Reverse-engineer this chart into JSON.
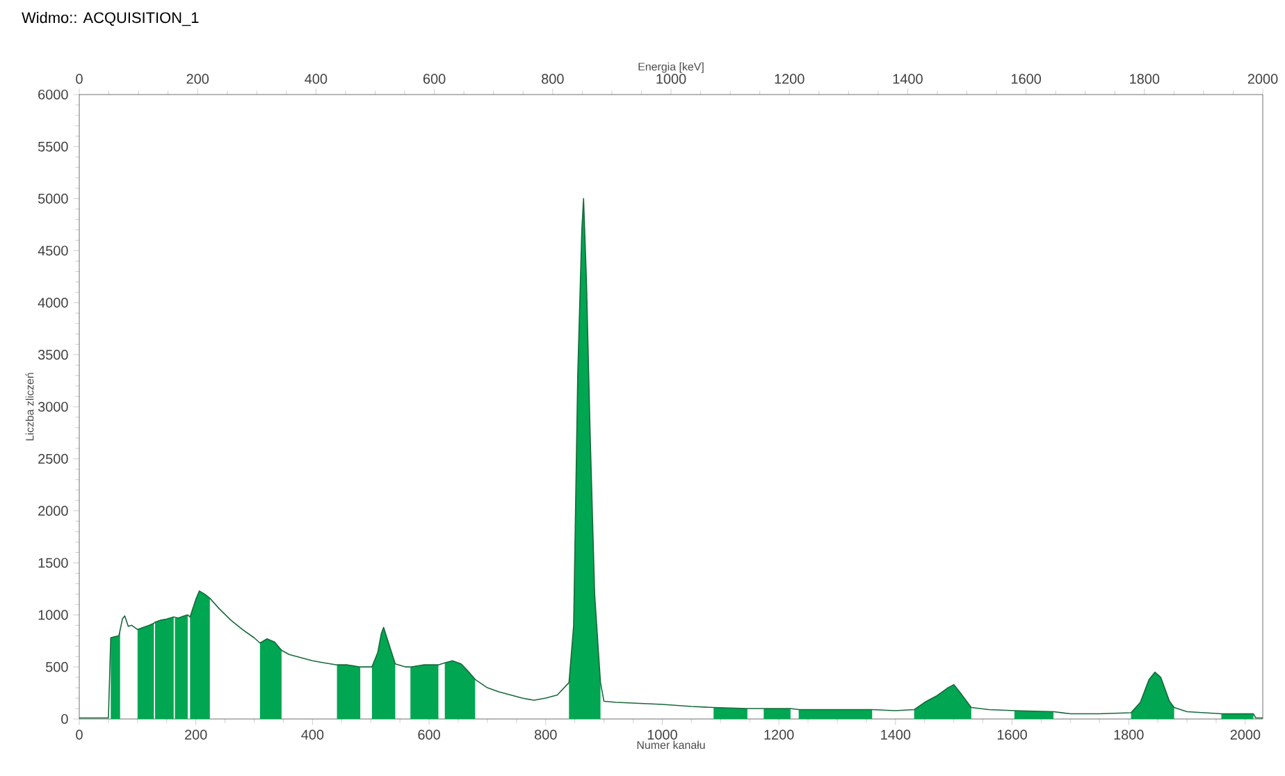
{
  "chart_data": {
    "type": "line",
    "title": "Widmo:: ACQUISITION_1",
    "xlabel": "Numer kanału",
    "ylabel": "Liczba zliczeń",
    "x2label": "Energia [keV]",
    "xlim": [
      0,
      2030
    ],
    "xticks": [
      0,
      200,
      400,
      600,
      800,
      1000,
      1200,
      1400,
      1600,
      1800,
      2000
    ],
    "x2lim": [
      0,
      2000
    ],
    "x2ticks": [
      0,
      200,
      400,
      600,
      800,
      1000,
      1200,
      1400,
      1600,
      1800,
      2000
    ],
    "ylim": [
      0,
      6000
    ],
    "yticks": [
      0,
      500,
      1000,
      1500,
      2000,
      2500,
      3000,
      3500,
      4000,
      4500,
      5000,
      5500,
      6000
    ],
    "grid": false,
    "marker": "none",
    "line_style": "solid",
    "series": [
      {
        "type": "area",
        "color": "#00a651",
        "x": [
          54,
          60,
          68,
          70
        ],
        "values": [
          780,
          790,
          800,
          850
        ]
      },
      {
        "type": "area",
        "color": "#00a651",
        "x": [
          100,
          110,
          120,
          128
        ],
        "values": [
          860,
          880,
          900,
          920
        ]
      },
      {
        "type": "area",
        "color": "#00a651",
        "x": [
          130,
          140,
          150,
          162
        ],
        "values": [
          930,
          950,
          960,
          980
        ]
      },
      {
        "type": "area",
        "color": "#00a651",
        "x": [
          164,
          170,
          180,
          186
        ],
        "values": [
          970,
          970,
          990,
          1000
        ]
      },
      {
        "type": "area",
        "color": "#00a651",
        "x": [
          190,
          200,
          206,
          215,
          224
        ],
        "values": [
          980,
          1150,
          1230,
          1200,
          1160
        ]
      },
      {
        "type": "area",
        "color": "#00a651",
        "x": [
          310,
          322,
          335,
          347
        ],
        "values": [
          730,
          770,
          740,
          660
        ]
      },
      {
        "type": "area",
        "color": "#00a651",
        "x": [
          442,
          460,
          482
        ],
        "values": [
          520,
          520,
          500
        ]
      },
      {
        "type": "area",
        "color": "#00a651",
        "x": [
          502,
          512,
          518,
          522,
          530,
          542
        ],
        "values": [
          500,
          640,
          820,
          880,
          740,
          530
        ]
      },
      {
        "type": "area",
        "color": "#00a651",
        "x": [
          568,
          590,
          616
        ],
        "values": [
          500,
          520,
          520
        ]
      },
      {
        "type": "area",
        "color": "#00a651",
        "x": [
          627,
          640,
          655,
          670,
          679
        ],
        "values": [
          540,
          560,
          530,
          440,
          380
        ]
      },
      {
        "type": "area",
        "color": "#00a651",
        "x": [
          840,
          848,
          855,
          862,
          865,
          870,
          876,
          884,
          894
        ],
        "values": [
          350,
          900,
          3300,
          4700,
          5000,
          4200,
          2800,
          1200,
          350
        ]
      },
      {
        "type": "area",
        "color": "#00a651",
        "x": [
          1088,
          1146
        ],
        "values": [
          110,
          100
        ]
      },
      {
        "type": "area",
        "color": "#00a651",
        "x": [
          1174,
          1220
        ],
        "values": [
          100,
          100
        ]
      },
      {
        "type": "area",
        "color": "#00a651",
        "x": [
          1234,
          1360
        ],
        "values": [
          90,
          90
        ]
      },
      {
        "type": "area",
        "color": "#00a651",
        "x": [
          1432,
          1450,
          1470,
          1490,
          1500,
          1510,
          1530
        ],
        "values": [
          90,
          160,
          220,
          300,
          330,
          260,
          110
        ]
      },
      {
        "type": "area",
        "color": "#00a651",
        "x": [
          1604,
          1671
        ],
        "values": [
          80,
          70
        ]
      },
      {
        "type": "area",
        "color": "#00a651",
        "x": [
          1804,
          1820,
          1835,
          1845,
          1855,
          1870,
          1878
        ],
        "values": [
          60,
          160,
          380,
          450,
          400,
          170,
          110
        ]
      },
      {
        "type": "area",
        "color": "#00a651",
        "x": [
          1959,
          2014
        ],
        "values": [
          50,
          50
        ]
      },
      {
        "color": "#17693a",
        "x": [
          0,
          50,
          54,
          60,
          68,
          74,
          78,
          84,
          90,
          100,
          110,
          120,
          128,
          130,
          140,
          150,
          162,
          170,
          180,
          186,
          190,
          200,
          206,
          215,
          224,
          240,
          260,
          280,
          300,
          310,
          322,
          335,
          347,
          360,
          380,
          400,
          420,
          442,
          460,
          482,
          502,
          512,
          518,
          522,
          530,
          542,
          560,
          568,
          590,
          616,
          627,
          640,
          655,
          670,
          679,
          700,
          720,
          740,
          760,
          780,
          800,
          820,
          840,
          848,
          855,
          862,
          865,
          870,
          876,
          884,
          894,
          900,
          920,
          960,
          1000,
          1050,
          1088,
          1146,
          1174,
          1220,
          1234,
          1360,
          1400,
          1432,
          1450,
          1470,
          1490,
          1500,
          1510,
          1530,
          1560,
          1604,
          1671,
          1700,
          1750,
          1804,
          1820,
          1835,
          1845,
          1855,
          1870,
          1878,
          1900,
          1959,
          2014,
          2018,
          2030
        ],
        "values": [
          10,
          10,
          780,
          790,
          800,
          960,
          990,
          890,
          900,
          860,
          880,
          900,
          920,
          930,
          950,
          960,
          980,
          970,
          990,
          1000,
          980,
          1150,
          1230,
          1200,
          1160,
          1060,
          950,
          860,
          780,
          730,
          770,
          740,
          660,
          620,
          590,
          560,
          540,
          520,
          520,
          500,
          500,
          640,
          820,
          880,
          740,
          530,
          500,
          500,
          520,
          520,
          540,
          560,
          530,
          440,
          380,
          300,
          260,
          230,
          200,
          180,
          200,
          230,
          350,
          900,
          3300,
          4700,
          5000,
          4200,
          2800,
          1200,
          350,
          170,
          160,
          150,
          140,
          120,
          110,
          100,
          100,
          100,
          90,
          90,
          80,
          90,
          160,
          220,
          300,
          330,
          260,
          110,
          90,
          80,
          70,
          50,
          50,
          60,
          160,
          380,
          450,
          400,
          170,
          110,
          70,
          50,
          50,
          10,
          10
        ]
      }
    ]
  }
}
